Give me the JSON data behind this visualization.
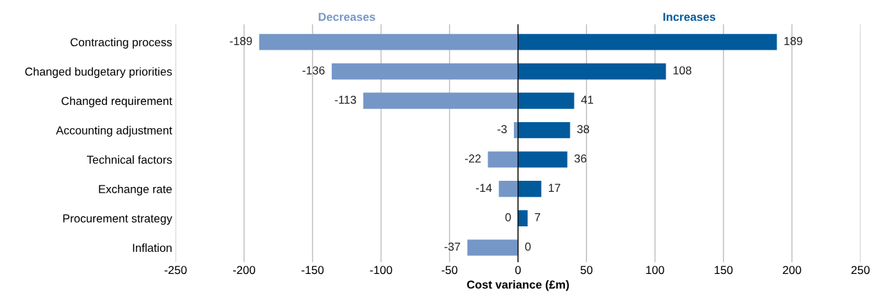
{
  "chart_data": {
    "type": "bar",
    "orientation": "horizontal",
    "xlabel": "Cost variance (£m)",
    "categories": [
      "Contracting process",
      "Changed budgetary priorities",
      "Changed requirement",
      "Accounting adjustment",
      "Technical factors",
      "Exchange rate",
      "Procurement strategy",
      "Inflation"
    ],
    "series": [
      {
        "name": "Decreases",
        "color": "#7597c7",
        "values": [
          -189,
          -136,
          -113,
          -3,
          -22,
          -14,
          0,
          -37
        ]
      },
      {
        "name": "Increases",
        "color": "#005a9c",
        "values": [
          189,
          108,
          41,
          38,
          36,
          17,
          7,
          0
        ]
      }
    ],
    "xlim": [
      -250,
      250
    ],
    "xticks": [
      -250,
      -200,
      -150,
      -100,
      -50,
      0,
      50,
      100,
      150,
      200,
      250
    ],
    "stacked": true,
    "grid": "x",
    "data_labels": true,
    "legend": false,
    "ref_lines": [
      {
        "axis": "x",
        "value": 0,
        "color": "#000000"
      }
    ]
  }
}
